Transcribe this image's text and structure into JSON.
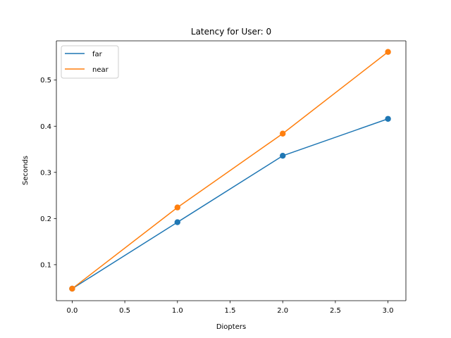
{
  "chart_data": {
    "type": "line",
    "title": "Latency for User: 0",
    "xlabel": "Diopters",
    "ylabel": "Seconds",
    "xlim": [
      -0.15,
      3.17
    ],
    "ylim": [
      0.022,
      0.585
    ],
    "xticks": [
      0.0,
      0.5,
      1.0,
      1.5,
      2.0,
      2.5,
      3.0
    ],
    "xtick_labels": [
      "0.0",
      "0.5",
      "1.0",
      "1.5",
      "2.0",
      "2.5",
      "3.0"
    ],
    "yticks": [
      0.1,
      0.2,
      0.3,
      0.4,
      0.5
    ],
    "ytick_labels": [
      "0.1",
      "0.2",
      "0.3",
      "0.4",
      "0.5"
    ],
    "grid": false,
    "legend_position": "top-left",
    "series": [
      {
        "name": "far",
        "color": "#1f77b4",
        "x": [
          0,
          1,
          2,
          3
        ],
        "y": [
          0.048,
          0.192,
          0.336,
          0.416
        ],
        "markers": true
      },
      {
        "name": "near",
        "color": "#ff7f0e",
        "x": [
          0,
          1,
          2,
          3
        ],
        "y": [
          0.048,
          0.224,
          0.384,
          0.561
        ],
        "markers": true
      }
    ]
  }
}
